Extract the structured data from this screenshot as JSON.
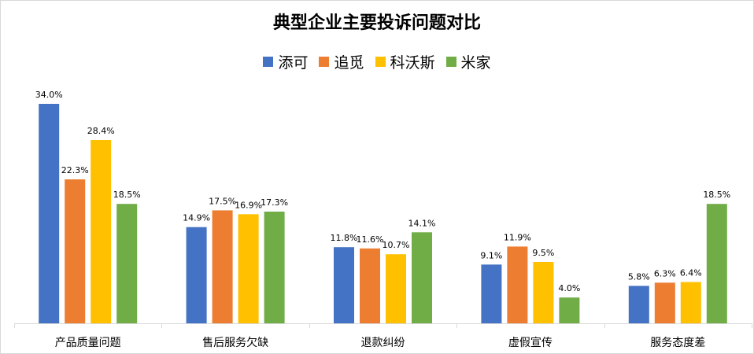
{
  "chart_data": {
    "type": "bar",
    "title": "典型企业主要投诉问题对比",
    "categories": [
      "产品质量问题",
      "售后服务欠缺",
      "退款纠纷",
      "虚假宣传",
      "服务态度差"
    ],
    "series": [
      {
        "name": "添可",
        "color": "#4472c4",
        "values": [
          34.0,
          14.9,
          11.8,
          9.1,
          5.8
        ]
      },
      {
        "name": "追觅",
        "color": "#ed7d31",
        "values": [
          22.3,
          17.5,
          11.6,
          11.9,
          6.3
        ]
      },
      {
        "name": "科沃斯",
        "color": "#ffc000",
        "values": [
          28.4,
          16.9,
          10.7,
          9.5,
          6.4
        ]
      },
      {
        "name": "米家",
        "color": "#70ad47",
        "values": [
          18.5,
          17.3,
          14.1,
          4.0,
          18.5
        ]
      }
    ],
    "value_suffix": "%",
    "ylim": [
      0,
      34
    ],
    "grid": false,
    "legend_position": "top-center",
    "axis_color": "#d9d9d9"
  }
}
